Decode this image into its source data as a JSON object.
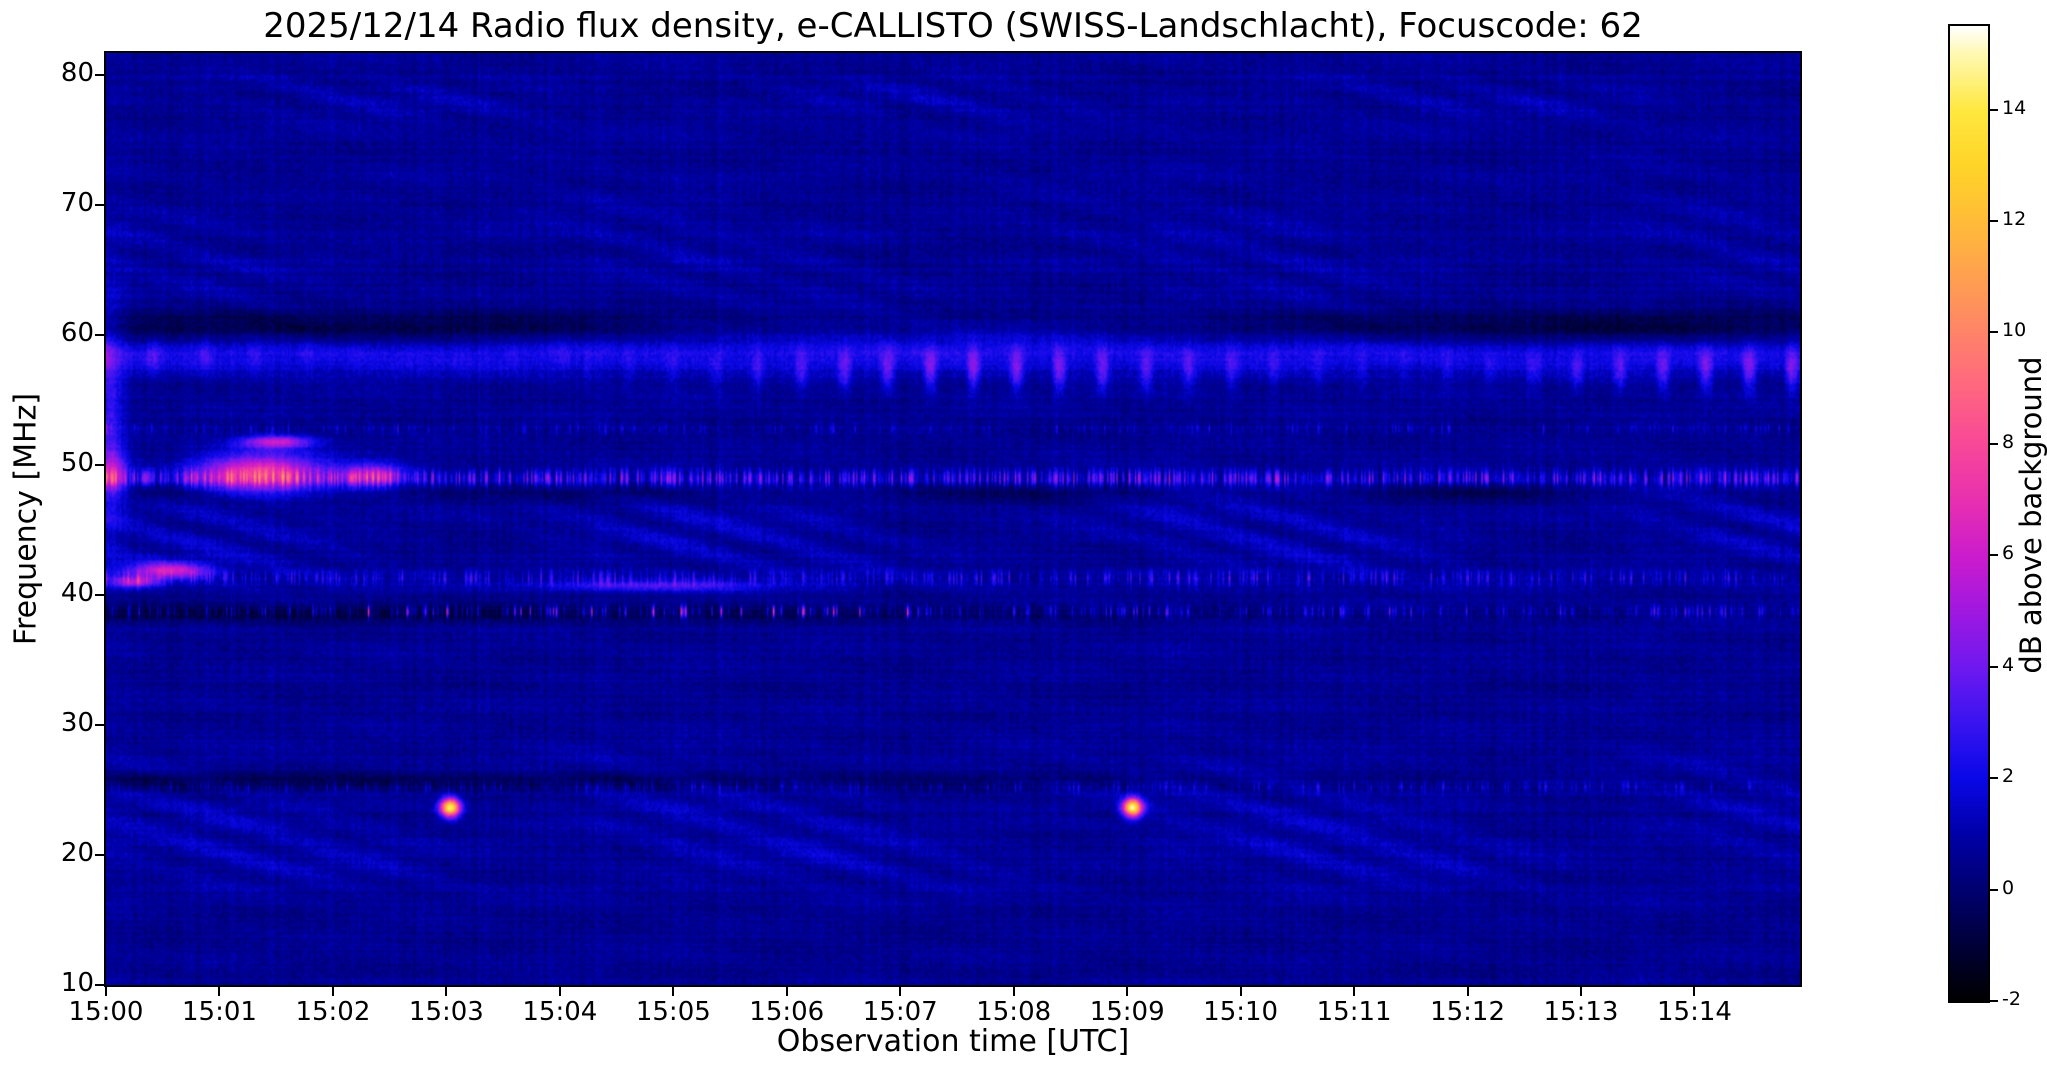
{
  "figure": {
    "title": "2025/12/14  Radio flux density, e-CALLISTO (SWISS-Landschlacht), Focuscode: 62",
    "xlabel": "Observation time [UTC]",
    "ylabel": "Frequency [MHz]",
    "colorbar_label": "dB above background"
  },
  "chart_data": {
    "type": "heatmap",
    "subtype": "radio-spectrogram",
    "title": "2025/12/14  Radio flux density, e-CALLISTO (SWISS-Landschlacht), Focuscode: 62",
    "observation_date": "2025/12/14",
    "instrument": "e-CALLISTO (SWISS-Landschlacht)",
    "focuscode": 62,
    "xlabel": "Observation time [UTC]",
    "ylabel": "Frequency [MHz]",
    "x_ticks": [
      "15:00",
      "15:01",
      "15:02",
      "15:03",
      "15:04",
      "15:05",
      "15:06",
      "15:07",
      "15:08",
      "15:09",
      "15:10",
      "15:11",
      "15:12",
      "15:13",
      "15:14"
    ],
    "x_range_minutes": [
      0,
      14.93
    ],
    "y_ticks": [
      10,
      20,
      30,
      40,
      50,
      60,
      70,
      80
    ],
    "y_range_mhz": [
      10,
      81.7
    ],
    "grid": false,
    "colorbar": {
      "label": "dB above background",
      "ticks": [
        -2,
        0,
        2,
        4,
        6,
        8,
        10,
        12,
        14
      ],
      "range": [
        -2,
        15.5
      ],
      "position": "right"
    },
    "background_level_db": 0.6,
    "colormap": {
      "name": "gnuplot2-like",
      "stops": [
        [
          0.0,
          0,
          0,
          0
        ],
        [
          0.114,
          0,
          0,
          112
        ],
        [
          0.171,
          0,
          0,
          168
        ],
        [
          0.229,
          10,
          8,
          232
        ],
        [
          0.286,
          58,
          20,
          240
        ],
        [
          0.343,
          112,
          24,
          240
        ],
        [
          0.4,
          160,
          24,
          224
        ],
        [
          0.457,
          204,
          28,
          204
        ],
        [
          0.514,
          232,
          48,
          176
        ],
        [
          0.571,
          248,
          72,
          152
        ],
        [
          0.629,
          255,
          102,
          128
        ],
        [
          0.686,
          255,
          132,
          104
        ],
        [
          0.743,
          255,
          160,
          80
        ],
        [
          0.8,
          255,
          188,
          56
        ],
        [
          0.857,
          255,
          212,
          40
        ],
        [
          0.914,
          255,
          232,
          64
        ],
        [
          0.971,
          255,
          248,
          176
        ],
        [
          1.0,
          255,
          255,
          255
        ]
      ]
    },
    "noise": {
      "pixel": 0.85,
      "column_stripe": 0.55,
      "row_line": 0.4,
      "mottle": 0.18,
      "seed": 20251214
    },
    "features": [
      {
        "name": "interference-band-58MHz-base",
        "type": "band",
        "f": 58.6,
        "hw": 1.1,
        "amp": 1.7
      },
      {
        "name": "interference-band-57MHz-blobs",
        "type": "wavy_band",
        "f": 57.3,
        "hw": 1.15,
        "amp": 2.9,
        "period": 0.38,
        "phase": 0.8,
        "tmin": 4.2,
        "tmax": 15
      },
      {
        "name": "interference-band-58MHz-blobs-early",
        "type": "wavy_band",
        "f": 58.4,
        "hw": 0.9,
        "amp": 1.5,
        "period": 0.45,
        "phase": 2.1,
        "tmin": 0,
        "tmax": 4.2
      },
      {
        "name": "dark-band-60MHz",
        "type": "dark_band",
        "f": 60.5,
        "hw": 0.95,
        "amp": -1.8,
        "mod_period": 11,
        "mod_phase_t": 2
      },
      {
        "name": "speckle-line-49MHz",
        "type": "speckle_line",
        "f": 49.0,
        "hw": 0.45,
        "amp": 3.2,
        "density": 0.85
      },
      {
        "name": "burst-49MHz-1501",
        "type": "blob",
        "t": 1.35,
        "f": 49.4,
        "st": 0.38,
        "sf": 1.0,
        "amp": 7.0
      },
      {
        "name": "burst-52MHz-1501",
        "type": "blob",
        "t": 1.5,
        "f": 51.8,
        "st": 0.22,
        "sf": 0.35,
        "amp": 5.5
      },
      {
        "name": "burst-49MHz-1502",
        "type": "blob",
        "t": 2.35,
        "f": 49.2,
        "st": 0.2,
        "sf": 0.6,
        "amp": 5.0
      },
      {
        "name": "dark-band-48MHz",
        "type": "dark_band",
        "f": 47.9,
        "hw": 0.5,
        "amp": -1.1,
        "mod_period": 4,
        "mod_phase_t": 0
      },
      {
        "name": "texture-band-44MHz",
        "type": "texture_band",
        "f": 44.6,
        "hw": 2.4,
        "amp": 1.15,
        "phase": 0
      },
      {
        "name": "speckle-line-41MHz",
        "type": "speckle_line",
        "f": 41.3,
        "hw": 0.4,
        "amp": 1.9,
        "density": 0.5
      },
      {
        "name": "burst-42MHz-1500",
        "type": "blob",
        "t": 0.55,
        "f": 41.9,
        "st": 0.25,
        "sf": 0.45,
        "amp": 5.5
      },
      {
        "name": "burst-41MHz-1500",
        "type": "blob",
        "t": 0.25,
        "f": 41.0,
        "st": 0.15,
        "sf": 0.3,
        "amp": 4.5
      },
      {
        "name": "streak-40MHz-1504",
        "type": "blob",
        "t": 4.8,
        "f": 40.7,
        "st": 0.7,
        "sf": 0.3,
        "amp": 2.6
      },
      {
        "name": "dark-line-38MHz",
        "type": "dark_band",
        "f": 38.6,
        "hw": 0.55,
        "amp": -1.5,
        "mod_period": 30,
        "mod_phase_t": 0
      },
      {
        "name": "speckles-38MHz",
        "type": "speckle_line",
        "f": 38.7,
        "hw": 0.35,
        "amp": 2.2,
        "density": 0.45
      },
      {
        "name": "pink-speckles-38MHz",
        "type": "speckle_line",
        "f": 38.7,
        "hw": 0.3,
        "amp": 4.6,
        "density": 0.13,
        "tmin": 2.3,
        "tmax": 7.3
      },
      {
        "name": "texture-band-23MHz",
        "type": "texture_band",
        "f": 23.5,
        "hw": 2.8,
        "amp": 0.8,
        "phase": 1.2
      },
      {
        "name": "dark-line-25MHz",
        "type": "dark_band",
        "f": 25.6,
        "hw": 0.5,
        "amp": -1.3,
        "mod_period": 30,
        "mod_phase_t": 0
      },
      {
        "name": "speckle-line-25MHz",
        "type": "speckle_line",
        "f": 25.2,
        "hw": 0.3,
        "amp": 1.4,
        "density": 0.4
      },
      {
        "name": "radio-burst-1503",
        "type": "blob",
        "t": 3.03,
        "f": 23.6,
        "st": 0.06,
        "sf": 0.5,
        "amp": 14.0
      },
      {
        "name": "radio-burst-1509",
        "type": "blob",
        "t": 9.05,
        "f": 23.6,
        "st": 0.06,
        "sf": 0.5,
        "amp": 14.0
      },
      {
        "name": "texture-band-19MHz",
        "type": "texture_band",
        "f": 19.3,
        "hw": 1.6,
        "amp": 0.7,
        "phase": 2
      },
      {
        "name": "texture-band-66MHz",
        "type": "texture_band",
        "f": 66.0,
        "hw": 4.0,
        "amp": 0.55,
        "phase": 0.5
      },
      {
        "name": "texture-band-78MHz",
        "type": "texture_band",
        "f": 78.3,
        "hw": 1.3,
        "amp": 0.8,
        "phase": 1
      },
      {
        "name": "left-edge-bright",
        "type": "blob",
        "t": 0.03,
        "f": 54.0,
        "st": 0.08,
        "sf": 6.0,
        "amp": 2.2
      },
      {
        "name": "left-edge-bright-49MHz",
        "type": "blob",
        "t": 0.05,
        "f": 49.3,
        "st": 0.1,
        "sf": 1.2,
        "amp": 4.0
      },
      {
        "name": "speckle-line-53MHz",
        "type": "speckle_line",
        "f": 52.8,
        "hw": 0.3,
        "amp": 1.2,
        "density": 0.3
      }
    ]
  }
}
